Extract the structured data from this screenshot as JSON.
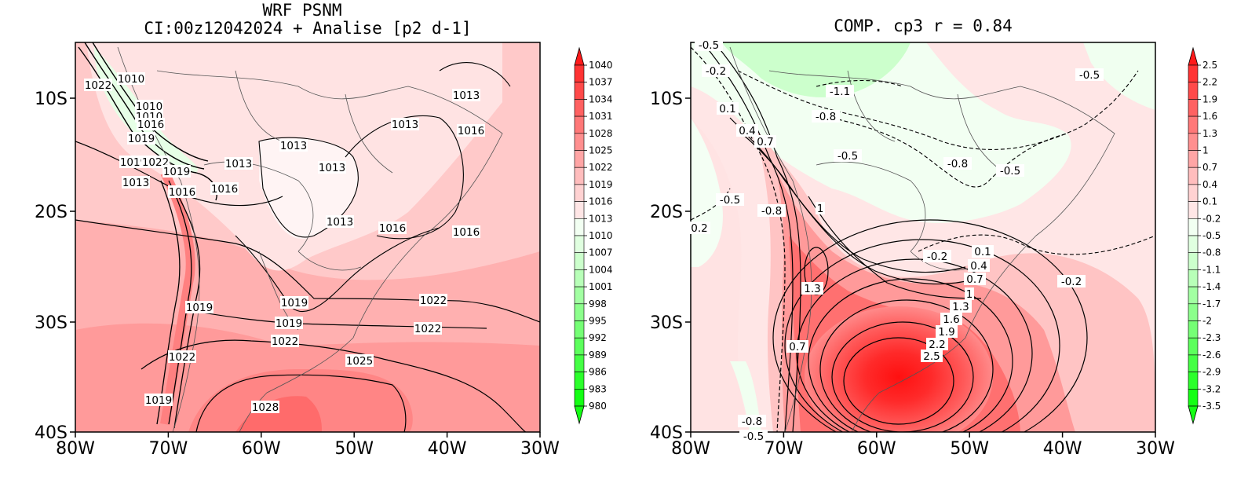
{
  "left": {
    "title_line1": "WRF PSNM",
    "title_line2": "CI:00z12042024 + Analise  [p2 d-1]",
    "x_ticks": [
      "80W",
      "70W",
      "60W",
      "50W",
      "40W",
      "30W"
    ],
    "y_ticks": [
      "10S",
      "20S",
      "30S",
      "40S"
    ],
    "colorbar": [
      "1040",
      "1037",
      "1034",
      "1031",
      "1028",
      "1025",
      "1022",
      "1019",
      "1016",
      "1013",
      "1010",
      "1007",
      "1004",
      "1001",
      "998",
      "995",
      "992",
      "989",
      "986",
      "983",
      "980"
    ],
    "colorbar_colors": [
      "#ff1a1a",
      "#ff3333",
      "#ff4a4a",
      "#ff6161",
      "#ff7878",
      "#ff8f8f",
      "#ffa5a5",
      "#ffbdbd",
      "#ffd2d2",
      "#ffe6e6",
      "#f2fff2",
      "#e0ffe0",
      "#ccffcc",
      "#b8ffb8",
      "#a2ffa2",
      "#8cff8c",
      "#75ff75",
      "#5cff5c",
      "#44ff44",
      "#2bff2b",
      "#14ff14"
    ],
    "contour_labels": [
      "1022",
      "1010",
      "1010",
      "1016",
      "1019",
      "1019",
      "1022",
      "1019",
      "1013",
      "1016",
      "1016",
      "1013",
      "1013",
      "1013",
      "1013",
      "1013",
      "1016",
      "1013",
      "1016",
      "1016",
      "1019",
      "1019",
      "1019",
      "1022",
      "1022",
      "1022",
      "1022",
      "1025",
      "1028",
      "1019",
      "1010"
    ]
  },
  "right": {
    "title": "COMP. cp3  r =  0.84",
    "x_ticks": [
      "80W",
      "70W",
      "60W",
      "50W",
      "40W",
      "30W"
    ],
    "y_ticks": [
      "10S",
      "20S",
      "30S",
      "40S"
    ],
    "colorbar": [
      "2.5",
      "2.2",
      "1.9",
      "1.6",
      "1.3",
      "1",
      "0.7",
      "0.4",
      "0.1",
      "-0.2",
      "-0.5",
      "-0.8",
      "-1.1",
      "-1.4",
      "-1.7",
      "-2",
      "-2.3",
      "-2.6",
      "-2.9",
      "-3.2",
      "-3.5"
    ],
    "colorbar_colors": [
      "#ff1a1a",
      "#ff3333",
      "#ff4a4a",
      "#ff6161",
      "#ff7878",
      "#ff8f8f",
      "#ffa5a5",
      "#ffbdbd",
      "#ffd2d2",
      "#ffe6e6",
      "#f2fff2",
      "#e0ffe0",
      "#ccffcc",
      "#b8ffb8",
      "#a2ffa2",
      "#8cff8c",
      "#75ff75",
      "#5cff5c",
      "#44ff44",
      "#2bff2b",
      "#14ff14"
    ],
    "contour_labels": [
      "-0.5",
      "-0.2",
      "0.1",
      "0.4",
      "0.7",
      "-1.1",
      "-0.8",
      "-0.5",
      "-0.8",
      "-0.5",
      "-0.5",
      "-0.5",
      "-0.8",
      "1",
      "0.2",
      "1.3",
      "0.7",
      "-0.2",
      "0.1",
      "0.4",
      "0.7",
      "1",
      "1.3",
      "1.6",
      "1.9",
      "2.2",
      "2.5",
      "-0.2",
      "-0.8",
      "-0.5"
    ]
  }
}
